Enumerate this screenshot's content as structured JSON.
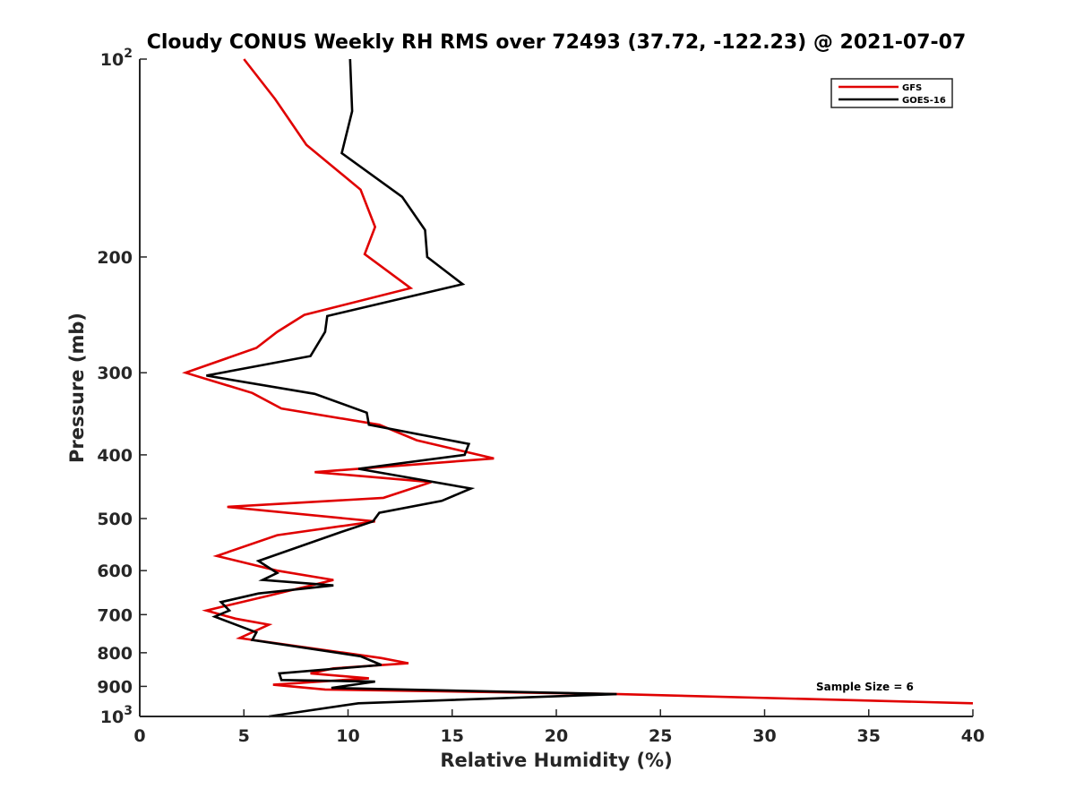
{
  "chart_data": {
    "type": "line",
    "title": "Cloudy CONUS Weekly RH RMS over 72493 (37.72, -122.23) @ 2021-07-07",
    "xlabel": "Relative Humidity (%)",
    "ylabel": "Pressure (mb)",
    "xlim": [
      0,
      40
    ],
    "ylim": [
      100,
      1000
    ],
    "y_scale": "log",
    "y_reversed": true,
    "x_ticks": [
      0,
      5,
      10,
      15,
      20,
      25,
      30,
      35,
      40
    ],
    "x_tick_labels": [
      "0",
      "5",
      "10",
      "15",
      "20",
      "25",
      "30",
      "35",
      "40"
    ],
    "y_ticks": [
      100,
      200,
      300,
      400,
      500,
      600,
      700,
      800,
      900,
      1000
    ],
    "y_tick_labels": [
      {
        "base": "10",
        "exp": "2"
      },
      {
        "base": "200",
        "exp": ""
      },
      {
        "base": "300",
        "exp": ""
      },
      {
        "base": "400",
        "exp": ""
      },
      {
        "base": "500",
        "exp": ""
      },
      {
        "base": "600",
        "exp": ""
      },
      {
        "base": "700",
        "exp": ""
      },
      {
        "base": "800",
        "exp": ""
      },
      {
        "base": "900",
        "exp": ""
      },
      {
        "base": "10",
        "exp": "3"
      }
    ],
    "grid": false,
    "legend_position": "top-right",
    "annotation": "Sample Size = 6",
    "series": [
      {
        "name": "GFS",
        "color": "#e00000",
        "points": [
          [
            5.0,
            100
          ],
          [
            6.5,
            115
          ],
          [
            8.0,
            135
          ],
          [
            10.6,
            158
          ],
          [
            11.3,
            180
          ],
          [
            10.8,
            198
          ],
          [
            13.0,
            223
          ],
          [
            7.9,
            245
          ],
          [
            6.6,
            260
          ],
          [
            5.6,
            275
          ],
          [
            2.2,
            300
          ],
          [
            5.4,
            322
          ],
          [
            6.8,
            340
          ],
          [
            11.5,
            360
          ],
          [
            13.3,
            380
          ],
          [
            17.0,
            405
          ],
          [
            8.4,
            425
          ],
          [
            14.0,
            440
          ],
          [
            11.7,
            465
          ],
          [
            4.2,
            480
          ],
          [
            11.3,
            505
          ],
          [
            6.6,
            530
          ],
          [
            3.7,
            570
          ],
          [
            6.6,
            600
          ],
          [
            9.3,
            620
          ],
          [
            6.2,
            655
          ],
          [
            3.2,
            690
          ],
          [
            4.6,
            710
          ],
          [
            6.2,
            725
          ],
          [
            4.8,
            760
          ],
          [
            11.6,
            815
          ],
          [
            12.9,
            830
          ],
          [
            9.3,
            845
          ],
          [
            8.2,
            860
          ],
          [
            11.0,
            875
          ],
          [
            6.4,
            895
          ],
          [
            8.9,
            910
          ],
          [
            23.0,
            925
          ],
          [
            40.0,
            955
          ]
        ]
      },
      {
        "name": "GOES-16",
        "color": "#000000",
        "points": [
          [
            10.1,
            100
          ],
          [
            10.2,
            120
          ],
          [
            9.7,
            139
          ],
          [
            12.6,
            162
          ],
          [
            13.7,
            182
          ],
          [
            13.8,
            200
          ],
          [
            15.5,
            220
          ],
          [
            9.0,
            246
          ],
          [
            8.9,
            260
          ],
          [
            8.2,
            283
          ],
          [
            3.2,
            303
          ],
          [
            8.4,
            323
          ],
          [
            10.9,
            345
          ],
          [
            11.0,
            360
          ],
          [
            15.8,
            385
          ],
          [
            15.6,
            400
          ],
          [
            10.5,
            420
          ],
          [
            15.9,
            450
          ],
          [
            14.5,
            470
          ],
          [
            11.5,
            490
          ],
          [
            11.2,
            505
          ],
          [
            9.6,
            525
          ],
          [
            5.7,
            580
          ],
          [
            6.6,
            605
          ],
          [
            5.9,
            620
          ],
          [
            9.3,
            632
          ],
          [
            5.7,
            650
          ],
          [
            3.9,
            670
          ],
          [
            4.3,
            690
          ],
          [
            3.6,
            705
          ],
          [
            5.6,
            745
          ],
          [
            5.4,
            765
          ],
          [
            10.6,
            810
          ],
          [
            11.6,
            835
          ],
          [
            6.7,
            860
          ],
          [
            6.8,
            880
          ],
          [
            11.3,
            885
          ],
          [
            9.2,
            905
          ],
          [
            22.9,
            925
          ],
          [
            10.5,
            955
          ],
          [
            6.2,
            1000
          ]
        ]
      }
    ]
  }
}
